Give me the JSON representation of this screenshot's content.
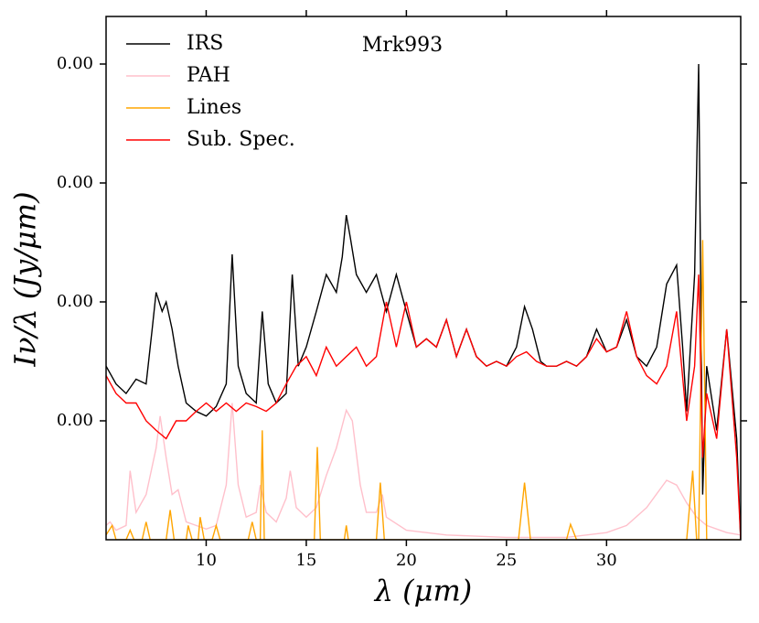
{
  "chart_data": {
    "type": "line",
    "xlabel": "λ (μm)",
    "ylabel": "Iν/λ (Jy/μm)",
    "annotation": "Mrk993",
    "xlim": [
      5,
      36.7
    ],
    "xticks": [
      10,
      15,
      20,
      25,
      30
    ],
    "ylim": [
      0,
      0.0044
    ],
    "yticks": [
      {
        "value": 0.001,
        "label": "0.00"
      },
      {
        "value": 0.002,
        "label": "0.00"
      },
      {
        "value": 0.003,
        "label": "0.00"
      },
      {
        "value": 0.004,
        "label": "0.00"
      }
    ],
    "legend": "upper left",
    "series": [
      {
        "name": "IRS",
        "color": "#000000",
        "x": [
          5.0,
          5.5,
          6.0,
          6.5,
          7.0,
          7.3,
          7.5,
          7.8,
          8.0,
          8.3,
          8.6,
          9.0,
          9.5,
          10.0,
          10.5,
          11.0,
          11.3,
          11.6,
          12.0,
          12.5,
          12.8,
          13.1,
          13.5,
          14.0,
          14.3,
          14.6,
          15.0,
          15.5,
          16.0,
          16.5,
          16.8,
          17.0,
          17.2,
          17.5,
          18.0,
          18.5,
          19.0,
          19.5,
          20.0,
          20.5,
          21.0,
          21.5,
          22.0,
          22.5,
          23.0,
          23.5,
          24.0,
          24.5,
          25.0,
          25.5,
          25.9,
          26.3,
          26.7,
          27.0,
          27.5,
          28.0,
          28.5,
          29.0,
          29.5,
          30.0,
          30.5,
          31.0,
          31.5,
          32.0,
          32.5,
          33.0,
          33.5,
          33.8,
          34.0,
          34.4,
          34.6,
          34.8,
          35.0,
          35.5,
          36.0,
          36.5,
          36.7
        ],
        "values": [
          0.00146,
          0.00131,
          0.00123,
          0.00135,
          0.00131,
          0.00177,
          0.00208,
          0.00192,
          0.002,
          0.00177,
          0.00146,
          0.00115,
          0.00108,
          0.00104,
          0.00112,
          0.00131,
          0.0024,
          0.00146,
          0.00123,
          0.00115,
          0.00192,
          0.00131,
          0.00115,
          0.00123,
          0.00223,
          0.00146,
          0.00162,
          0.00192,
          0.00223,
          0.00208,
          0.00238,
          0.00273,
          0.00254,
          0.00223,
          0.00208,
          0.00223,
          0.00192,
          0.00223,
          0.00192,
          0.00162,
          0.00169,
          0.00162,
          0.00185,
          0.00154,
          0.00177,
          0.00154,
          0.00146,
          0.0015,
          0.00146,
          0.00162,
          0.00196,
          0.00177,
          0.0015,
          0.00146,
          0.00146,
          0.0015,
          0.00146,
          0.00154,
          0.00177,
          0.00158,
          0.00162,
          0.00185,
          0.00154,
          0.00146,
          0.00162,
          0.00215,
          0.00231,
          0.00162,
          0.00108,
          0.00223,
          0.004,
          0.00038,
          0.00146,
          0.00092,
          0.00177,
          0.00085,
          0
        ]
      },
      {
        "name": "PAH",
        "color": "#ffc0cb",
        "x": [
          5.0,
          5.2,
          5.5,
          6.0,
          6.2,
          6.5,
          7.0,
          7.5,
          7.7,
          8.0,
          8.3,
          8.6,
          9.0,
          9.5,
          10.0,
          10.5,
          11.0,
          11.3,
          11.6,
          12.0,
          12.5,
          12.7,
          13.0,
          13.5,
          14.0,
          14.2,
          14.5,
          15.0,
          15.5,
          16.0,
          16.5,
          17.0,
          17.3,
          17.7,
          18.0,
          18.5,
          18.8,
          19.0,
          20.0,
          22.0,
          25.0,
          28.0,
          30.0,
          31.0,
          32.0,
          33.0,
          33.5,
          34.0,
          34.5,
          35.0,
          36.0,
          36.7
        ],
        "values": [
          0.00012,
          0.00015,
          8e-05,
          0.00012,
          0.00058,
          0.00023,
          0.00038,
          0.00077,
          0.00104,
          0.00069,
          0.00038,
          0.00042,
          0.00015,
          0.00012,
          9e-05,
          0.00012,
          0.00046,
          0.00115,
          0.00046,
          0.00019,
          0.00023,
          0.00046,
          0.00023,
          0.00015,
          0.00035,
          0.00058,
          0.00027,
          0.00019,
          0.00027,
          0.00054,
          0.00077,
          0.00109,
          0.001,
          0.00046,
          0.00023,
          0.00023,
          0.00038,
          0.00019,
          8e-05,
          4e-05,
          2e-05,
          2e-05,
          6e-05,
          0.00012,
          0.00027,
          0.0005,
          0.00046,
          0.00031,
          0.00019,
          0.00012,
          6e-05,
          4e-05
        ]
      },
      {
        "name": "Lines",
        "color": "#ffa500",
        "x": [
          5.0,
          5.3,
          5.5,
          6.0,
          6.2,
          6.4,
          6.8,
          7.0,
          7.2,
          8.0,
          8.2,
          8.4,
          9.0,
          9.1,
          9.3,
          9.6,
          9.7,
          9.9,
          10.3,
          10.5,
          10.7,
          12.1,
          12.3,
          12.5,
          12.7,
          12.8,
          12.9,
          15.4,
          15.55,
          15.7,
          16.9,
          17.0,
          17.1,
          18.5,
          18.7,
          18.9,
          25.6,
          25.9,
          26.2,
          28.0,
          28.2,
          28.5,
          34.0,
          34.3,
          34.5,
          34.6,
          34.8,
          35.0,
          36.7
        ],
        "values": [
          4e-05,
          0.00012,
          0,
          0,
          8e-05,
          0,
          0,
          0.00015,
          0,
          0,
          0.00025,
          0,
          0,
          0.00012,
          0,
          0,
          0.00019,
          0,
          0,
          0.00012,
          0,
          0,
          0.00015,
          0,
          0,
          0.00092,
          0,
          0,
          0.00078,
          0,
          0,
          0.00012,
          0,
          0,
          0.00048,
          0,
          0,
          0.00048,
          0,
          0,
          0.00013,
          0,
          0,
          0.00058,
          0,
          0,
          0.00252,
          0,
          0
        ]
      },
      {
        "name": "Sub. Spec.",
        "color": "#ff0000",
        "x": [
          5.0,
          5.5,
          6.0,
          6.5,
          7.0,
          7.5,
          8.0,
          8.5,
          9.0,
          9.5,
          10.0,
          10.5,
          11.0,
          11.5,
          12.0,
          12.5,
          13.0,
          13.5,
          14.0,
          14.5,
          15.0,
          15.5,
          16.0,
          16.5,
          17.0,
          17.5,
          18.0,
          18.5,
          19.0,
          19.5,
          20.0,
          20.5,
          21.0,
          21.5,
          22.0,
          22.5,
          23.0,
          23.5,
          24.0,
          24.5,
          25.0,
          25.5,
          26.0,
          26.5,
          27.0,
          27.5,
          28.0,
          28.5,
          29.0,
          29.5,
          30.0,
          30.5,
          31.0,
          31.5,
          32.0,
          32.5,
          33.0,
          33.5,
          34.0,
          34.4,
          34.6,
          34.8,
          35.0,
          35.5,
          36.0,
          36.5,
          36.7
        ],
        "values": [
          0.00138,
          0.00123,
          0.00115,
          0.00115,
          0.001,
          0.00092,
          0.00085,
          0.001,
          0.001,
          0.00108,
          0.00115,
          0.00108,
          0.00115,
          0.00108,
          0.00115,
          0.00112,
          0.00108,
          0.00115,
          0.00131,
          0.00146,
          0.00154,
          0.00138,
          0.00162,
          0.00146,
          0.00154,
          0.00162,
          0.00146,
          0.00154,
          0.002,
          0.00162,
          0.002,
          0.00162,
          0.00169,
          0.00162,
          0.00185,
          0.00154,
          0.00177,
          0.00154,
          0.00146,
          0.0015,
          0.00146,
          0.00154,
          0.00158,
          0.0015,
          0.00146,
          0.00146,
          0.0015,
          0.00146,
          0.00154,
          0.00169,
          0.00158,
          0.00162,
          0.00192,
          0.00154,
          0.00138,
          0.00131,
          0.00146,
          0.00192,
          0.001,
          0.00146,
          0.00223,
          0.00069,
          0.00123,
          0.00085,
          0.00177,
          0.00069,
          0
        ]
      }
    ]
  }
}
